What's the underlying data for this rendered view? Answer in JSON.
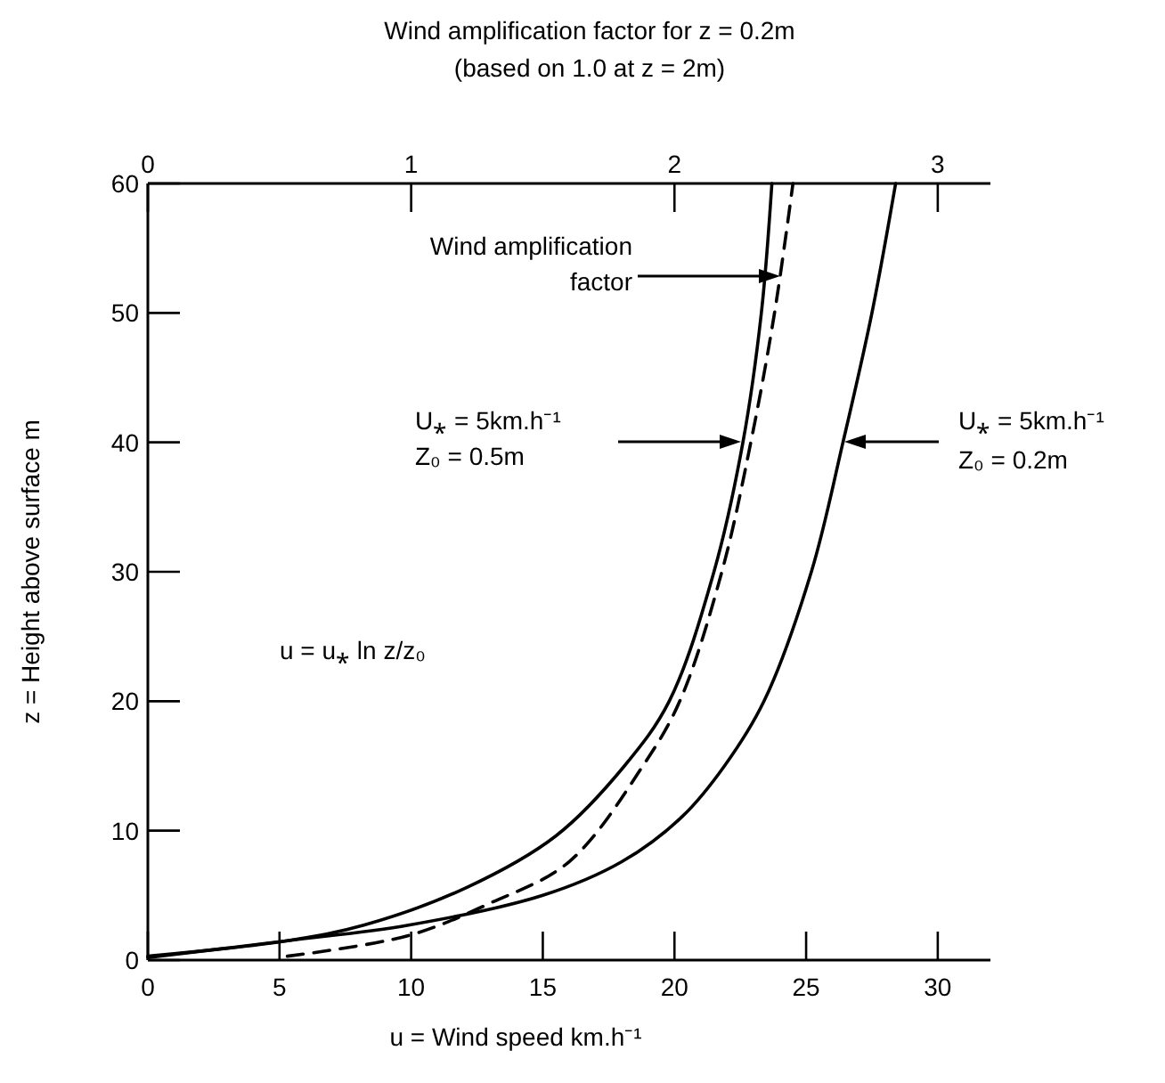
{
  "chart_data": {
    "type": "line",
    "title": "Wind amplification factor for z = 0.2m",
    "subtitle": "(based on 1.0 at z = 2m)",
    "xlabel": "u = Wind speed km.h⁻¹",
    "ylabel": "z = Height above surface m",
    "xlim": [
      0,
      32
    ],
    "xticks": [
      0,
      5,
      10,
      15,
      20,
      25,
      30
    ],
    "x2lim": [
      0,
      3.2
    ],
    "x2ticks": [
      0,
      1,
      2,
      3
    ],
    "ylim": [
      0,
      60
    ],
    "yticks": [
      0,
      10,
      20,
      30,
      40,
      50,
      60
    ],
    "series": [
      {
        "color": "#000000",
        "line_style": "solid",
        "x": [
          0,
          5.3,
          8.2,
          12.1,
          15.5,
          18.1,
          19.8,
          21.5,
          22.6,
          23.3,
          23.7
        ],
        "values": [
          0.3,
          1.5,
          2.7,
          5.6,
          9.6,
          15,
          20,
          30,
          40,
          50,
          60
        ]
      },
      {
        "color": "#000000",
        "line_style": "solid",
        "x": [
          0,
          5.3,
          9.9,
          15,
          18,
          20.3,
          21.9,
          23.4,
          25.2,
          26.4,
          27.5,
          28.4
        ],
        "values": [
          0.2,
          1.5,
          2.7,
          5,
          7.6,
          11.1,
          15,
          20,
          30,
          40,
          50,
          60
        ]
      },
      {
        "color": "#000000",
        "line_style": "dashed",
        "axis": "x2",
        "x": [
          0.53,
          0.99,
          1.3,
          1.6,
          1.88,
          2.02,
          2.18,
          2.29,
          2.38,
          2.45
        ],
        "values": [
          0.3,
          1.9,
          4.4,
          7.6,
          15,
          20,
          30,
          40,
          50,
          60
        ]
      }
    ],
    "annotations": [
      "Wind amplification\nfactor",
      "U⁎ = 5km.h⁻¹\nZ₀ = 0.5m",
      "U⁎ = 5km.h⁻¹\nZ₀ = 0.2m",
      "u = u⁎ ln z/z₀"
    ]
  }
}
